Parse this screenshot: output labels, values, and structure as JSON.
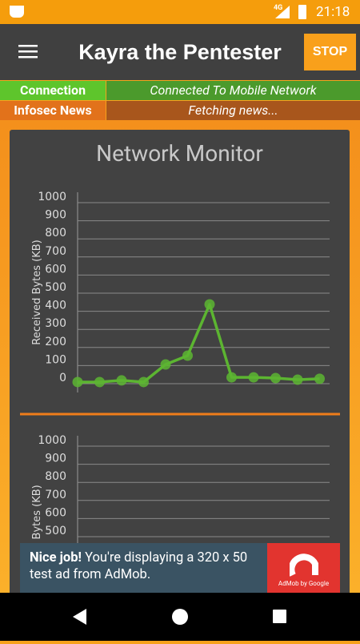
{
  "status_bar": {
    "network": "4G",
    "time": "21:18"
  },
  "app_bar": {
    "title": "Kayra the Pentester",
    "button": "STOP"
  },
  "status_rows": [
    {
      "label": "Connection",
      "value": "Connected To Mobile Network"
    },
    {
      "label": "Infosec News",
      "value": "Fetching news..."
    }
  ],
  "panel_title": "Network Monitor",
  "chart_data": [
    {
      "type": "line",
      "y_label": "Received Bytes (KB)",
      "color": "#5cb531",
      "values": [
        9,
        9,
        18,
        9,
        106,
        155,
        438,
        35,
        35,
        31,
        22,
        27
      ],
      "ylim": [
        0,
        1000
      ],
      "yticks": [
        0,
        100,
        200,
        300,
        400,
        500,
        600,
        700,
        800,
        900,
        1000
      ],
      "grid": true
    },
    {
      "type": "line",
      "y_label": "Received Bytes (KB)",
      "color": "#5cb531",
      "ylim": [
        0,
        1000
      ],
      "yticks": [
        500,
        600,
        700,
        800,
        900,
        1000
      ],
      "grid": true
    }
  ],
  "ad": {
    "headline": "Nice job!",
    "text": "You're displaying a 320 x 50 test ad from AdMob.",
    "brand": "AdMob by Google"
  }
}
